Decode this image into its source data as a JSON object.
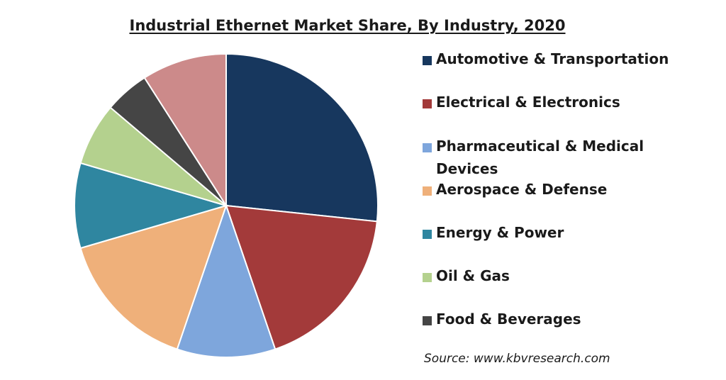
{
  "chart_data": {
    "type": "pie",
    "title": "Industrial Ethernet Market Share, By Industry, 2020",
    "source": "Source: www.kbvresearch.com",
    "slices": [
      {
        "label": "Automotive & Transportation",
        "value": 28.0,
        "color": "#17375e"
      },
      {
        "label": "Electrical & Electronics",
        "value": 19.0,
        "color": "#a33a3a"
      },
      {
        "label": "Pharmaceutical & Medical Devices",
        "value": 11.0,
        "color": "#7ea6dc"
      },
      {
        "label": "Aerospace & Defense",
        "value": 16.0,
        "color": "#efb07a"
      },
      {
        "label": "Energy & Power",
        "value": 9.5,
        "color": "#2f86a0"
      },
      {
        "label": "Oil & Gas",
        "value": 7.0,
        "color": "#b4d18e"
      },
      {
        "label": "Food & Beverages",
        "value": 5.0,
        "color": "#454545"
      },
      {
        "label": "",
        "value": 9.5,
        "color": "#cc8a8a"
      }
    ],
    "legend_position": "right",
    "legend": [
      {
        "label": "Automotive & Transportation",
        "color": "#17375e"
      },
      {
        "label": "Electrical & Electronics",
        "color": "#a33a3a"
      },
      {
        "label": "Pharmaceutical & Medical Devices",
        "color": "#7ea6dc"
      },
      {
        "label": "Aerospace & Defense",
        "color": "#efb07a"
      },
      {
        "label": "Energy & Power",
        "color": "#2f86a0"
      },
      {
        "label": "Oil & Gas",
        "color": "#b4d18e"
      },
      {
        "label": "Food & Beverages",
        "color": "#454545"
      }
    ]
  }
}
